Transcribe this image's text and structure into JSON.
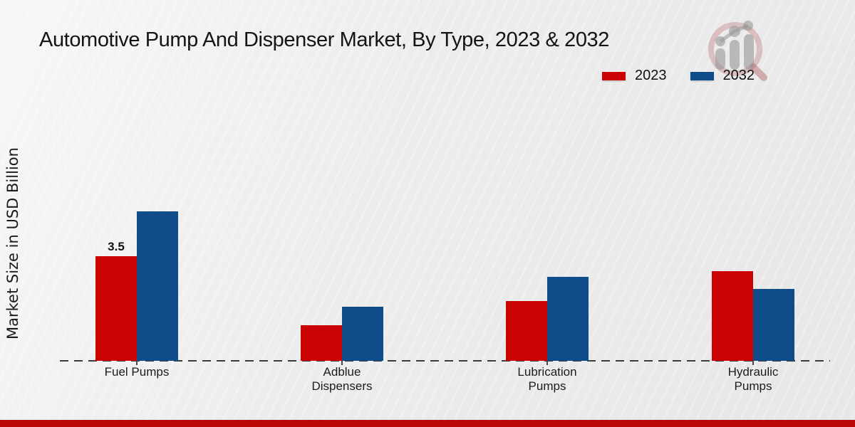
{
  "page": {
    "title": "Automotive Pump And Dispenser Market, By Type, 2023 & 2032",
    "watermark_icon": "magnifier-bar-chart-logo",
    "footer_accent_color": "#b90606"
  },
  "legend": {
    "items": [
      {
        "label": "2023",
        "color": "#c90303"
      },
      {
        "label": "2032",
        "color": "#0e4d8a"
      }
    ]
  },
  "chart_data": {
    "type": "bar",
    "title": "Automotive Pump And Dispenser Market, By Type, 2023 & 2032",
    "ylabel": "Market Size in USD Billion",
    "xlabel": "",
    "categories": [
      "Fuel Pumps",
      "Adblue Dispensers",
      "Lubrication Pumps",
      "Hydraulic Pumps"
    ],
    "category_label_lines": [
      [
        "Fuel Pumps"
      ],
      [
        "Adblue",
        "Dispensers"
      ],
      [
        "Lubrication",
        "Pumps"
      ],
      [
        "Hydraulic",
        "Pumps"
      ]
    ],
    "series": [
      {
        "name": "2023",
        "color": "#c90303",
        "values": [
          3.5,
          1.2,
          2.0,
          3.0
        ],
        "data_labels": {
          "0": "3.5"
        }
      },
      {
        "name": "2032",
        "color": "#0e4d8a",
        "values": [
          5.0,
          1.8,
          2.8,
          2.4
        ]
      }
    ],
    "ylim": [
      0,
      5.5
    ],
    "grid": false,
    "y_axis_line": "none",
    "baseline_style": "dashed",
    "legend_position": "top-right"
  }
}
